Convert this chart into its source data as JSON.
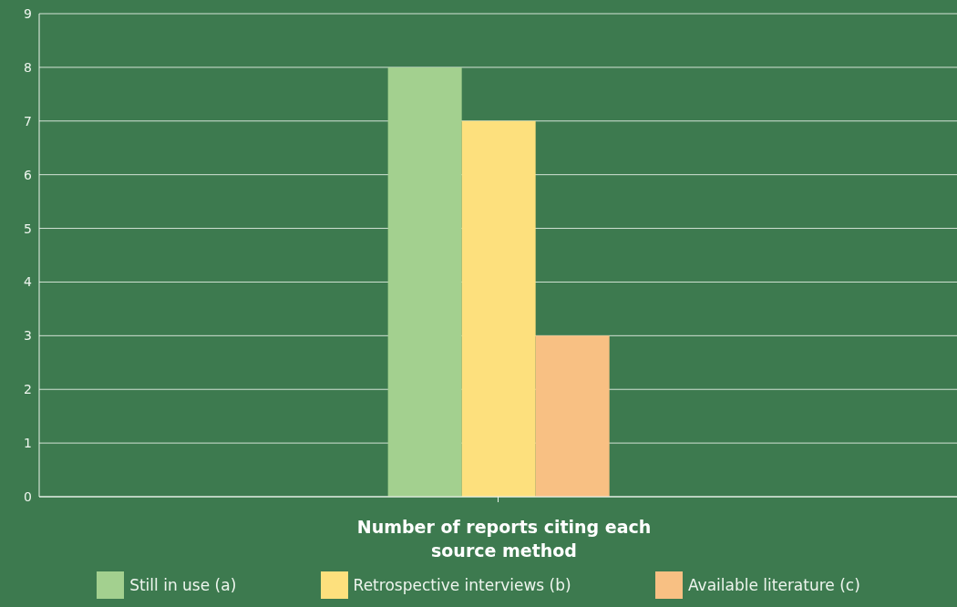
{
  "chart_data": {
    "type": "bar",
    "xlabel": "Number of reports citing each source method",
    "categories": [
      null
    ],
    "series": [
      {
        "name": "Still in use (a)",
        "color": "#a3d08f",
        "values": [
          8
        ]
      },
      {
        "name": "Retrospective interviews (b)",
        "color": "#fde07d",
        "values": [
          7
        ]
      },
      {
        "name": "Available literature (c)",
        "color": "#f8c083",
        "values": [
          3
        ]
      }
    ],
    "ylim": [
      0,
      9
    ],
    "yticks": [
      0,
      1,
      2,
      3,
      4,
      5,
      6,
      7,
      8,
      9
    ],
    "grid": "y",
    "legend": "bottom"
  }
}
